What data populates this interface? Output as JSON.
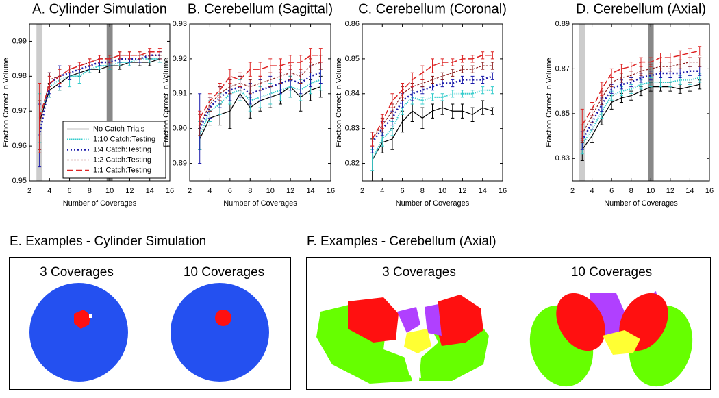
{
  "chart_data": [
    {
      "type": "line",
      "title": "A. Cylinder Simulation",
      "xlabel": "Number of Coverages",
      "ylabel": "Fraction Correct in Volume",
      "x": [
        3,
        4,
        5,
        6,
        7,
        8,
        9,
        10,
        11,
        12,
        13,
        14,
        15
      ],
      "xlim": [
        2,
        16
      ],
      "xticks": [
        2,
        4,
        6,
        8,
        10,
        12,
        14,
        16
      ],
      "ylim": [
        0.95,
        0.995
      ],
      "yticks": [
        0.95,
        0.96,
        0.97,
        0.98,
        0.99
      ],
      "legend": "lower right",
      "shaded": [
        {
          "x": [
            2.7,
            3.3
          ],
          "color": "#cccccc"
        },
        {
          "x": [
            9.7,
            10.3
          ],
          "color": "#888888"
        }
      ],
      "series": [
        {
          "name": "No Catch Trials",
          "color": "#000000",
          "style": "solid",
          "values": [
            0.967,
            0.976,
            0.978,
            0.98,
            0.981,
            0.982,
            0.982,
            0.983,
            0.983,
            0.984,
            0.984,
            0.984,
            0.985
          ],
          "errors": [
            0.006,
            0.002,
            0.002,
            0.001,
            0.001,
            0.001,
            0.001,
            0.001,
            0.001,
            0.001,
            0.001,
            0.001,
            0.001
          ]
        },
        {
          "name": "1:10 Catch:Testing",
          "color": "#33cccc",
          "style": "dotted",
          "values": [
            0.968,
            0.977,
            0.979,
            0.98,
            0.98,
            0.982,
            0.983,
            0.983,
            0.984,
            0.984,
            0.985,
            0.985,
            0.985
          ],
          "errors": [
            0.007,
            0.003,
            0.003,
            0.003,
            0.002,
            0.001,
            0.001,
            0.001,
            0.001,
            0.001,
            0.001,
            0.001,
            0.001
          ]
        },
        {
          "name": "1:4 Catch:Testing",
          "color": "#1a1aaa",
          "style": "heavydot",
          "values": [
            0.963,
            0.978,
            0.98,
            0.981,
            0.982,
            0.983,
            0.984,
            0.984,
            0.985,
            0.985,
            0.985,
            0.986,
            0.986
          ],
          "errors": [
            0.009,
            0.003,
            0.003,
            0.002,
            0.001,
            0.001,
            0.001,
            0.001,
            0.001,
            0.001,
            0.001,
            0.001,
            0.001
          ]
        },
        {
          "name": "1:2 Catch:Testing",
          "color": "#8b1a1a",
          "style": "dashed",
          "values": [
            0.966,
            0.979,
            0.98,
            0.982,
            0.983,
            0.984,
            0.985,
            0.985,
            0.986,
            0.986,
            0.986,
            0.986,
            0.986
          ],
          "errors": [
            0.007,
            0.002,
            0.002,
            0.001,
            0.001,
            0.001,
            0.001,
            0.001,
            0.001,
            0.001,
            0.001,
            0.001,
            0.001
          ]
        },
        {
          "name": "1:1 Catch:Testing",
          "color": "#dd2222",
          "style": "longdash",
          "values": [
            0.968,
            0.978,
            0.98,
            0.982,
            0.983,
            0.984,
            0.985,
            0.985,
            0.986,
            0.986,
            0.986,
            0.987,
            0.987
          ],
          "errors": [
            0.01,
            0.002,
            0.002,
            0.001,
            0.001,
            0.001,
            0.001,
            0.001,
            0.001,
            0.001,
            0.001,
            0.001,
            0.001
          ]
        }
      ]
    },
    {
      "type": "line",
      "title": "B. Cerebellum (Sagittal)",
      "xlabel": "Number of Coverages",
      "ylabel": "Fraction Correct in Volume",
      "x": [
        3,
        4,
        5,
        6,
        7,
        8,
        9,
        10,
        11,
        12,
        13,
        14,
        15
      ],
      "xlim": [
        2,
        16
      ],
      "xticks": [
        2,
        4,
        6,
        8,
        10,
        12,
        14,
        16
      ],
      "ylim": [
        0.885,
        0.93
      ],
      "yticks": [
        0.89,
        {
          "value": 0.9,
          "label": "0.90"
        },
        0.91,
        0.92,
        0.93
      ],
      "series": [
        {
          "color": "#000000",
          "style": "solid",
          "values": [
            0.897,
            0.903,
            0.904,
            0.905,
            0.91,
            0.906,
            0.908,
            0.909,
            0.91,
            0.912,
            0.909,
            0.911,
            0.912
          ],
          "errors": [
            0.003,
            0.002,
            0.003,
            0.005,
            0.002,
            0.003,
            0.003,
            0.003,
            0.003,
            0.003,
            0.004,
            0.003,
            0.003
          ]
        },
        {
          "color": "#33cccc",
          "style": "dotted",
          "values": [
            0.898,
            0.905,
            0.907,
            0.91,
            0.911,
            0.908,
            0.909,
            0.91,
            0.911,
            0.912,
            0.911,
            0.913,
            0.914
          ],
          "errors": [
            0.004,
            0.003,
            0.003,
            0.003,
            0.003,
            0.003,
            0.003,
            0.003,
            0.003,
            0.003,
            0.003,
            0.003,
            0.003
          ]
        },
        {
          "color": "#1a1aaa",
          "style": "heavydot",
          "values": [
            0.9,
            0.906,
            0.909,
            0.911,
            0.912,
            0.91,
            0.911,
            0.912,
            0.913,
            0.914,
            0.913,
            0.915,
            0.916
          ],
          "errors": [
            0.01,
            0.003,
            0.003,
            0.003,
            0.003,
            0.003,
            0.003,
            0.003,
            0.003,
            0.003,
            0.003,
            0.003,
            0.003
          ]
        },
        {
          "color": "#8b1a1a",
          "style": "dashed",
          "values": [
            0.901,
            0.907,
            0.91,
            0.912,
            0.913,
            0.912,
            0.913,
            0.914,
            0.915,
            0.916,
            0.915,
            0.918,
            0.919
          ],
          "errors": [
            0.003,
            0.002,
            0.002,
            0.002,
            0.002,
            0.002,
            0.002,
            0.002,
            0.002,
            0.002,
            0.002,
            0.002,
            0.002
          ]
        },
        {
          "color": "#dd2222",
          "style": "longdash",
          "values": [
            0.903,
            0.908,
            0.911,
            0.915,
            0.914,
            0.917,
            0.917,
            0.918,
            0.918,
            0.919,
            0.919,
            0.921,
            0.921
          ],
          "errors": [
            0.002,
            0.002,
            0.002,
            0.002,
            0.002,
            0.002,
            0.002,
            0.002,
            0.002,
            0.002,
            0.002,
            0.002,
            0.002
          ]
        }
      ]
    },
    {
      "type": "line",
      "title": "C. Cerebellum (Coronal)",
      "xlabel": "Number of Coverages",
      "ylabel": "Fraction Correct in Volume",
      "x": [
        3,
        4,
        5,
        6,
        7,
        8,
        9,
        10,
        11,
        12,
        13,
        14,
        15
      ],
      "xlim": [
        2,
        16
      ],
      "xticks": [
        2,
        4,
        6,
        8,
        10,
        12,
        14,
        16
      ],
      "ylim": [
        0.815,
        0.86
      ],
      "yticks": [
        0.82,
        0.83,
        0.84,
        0.85,
        0.86
      ],
      "series": [
        {
          "color": "#000000",
          "style": "solid",
          "values": [
            0.821,
            0.826,
            0.827,
            0.832,
            0.835,
            0.833,
            0.835,
            0.836,
            0.835,
            0.835,
            0.834,
            0.836,
            0.835
          ],
          "errors": [
            0.006,
            0.003,
            0.003,
            0.003,
            0.003,
            0.003,
            0.002,
            0.002,
            0.002,
            0.002,
            0.002,
            0.002,
            0.001
          ]
        },
        {
          "color": "#33cccc",
          "style": "dotted",
          "values": [
            0.821,
            0.827,
            0.83,
            0.836,
            0.839,
            0.838,
            0.839,
            0.839,
            0.84,
            0.84,
            0.84,
            0.841,
            0.841
          ],
          "errors": [
            0.003,
            0.002,
            0.002,
            0.002,
            0.002,
            0.001,
            0.001,
            0.001,
            0.001,
            0.001,
            0.001,
            0.001,
            0.001
          ]
        },
        {
          "color": "#1a1aaa",
          "style": "heavydot",
          "values": [
            0.826,
            0.83,
            0.833,
            0.838,
            0.84,
            0.841,
            0.842,
            0.843,
            0.843,
            0.844,
            0.844,
            0.844,
            0.845
          ],
          "errors": [
            0.003,
            0.002,
            0.002,
            0.002,
            0.002,
            0.001,
            0.001,
            0.001,
            0.001,
            0.001,
            0.001,
            0.001,
            0.001
          ]
        },
        {
          "color": "#8b1a1a",
          "style": "dashed",
          "values": [
            0.827,
            0.831,
            0.835,
            0.84,
            0.842,
            0.843,
            0.844,
            0.845,
            0.846,
            0.847,
            0.847,
            0.848,
            0.848
          ],
          "errors": [
            0.002,
            0.002,
            0.002,
            0.002,
            0.001,
            0.001,
            0.001,
            0.001,
            0.001,
            0.001,
            0.001,
            0.001,
            0.001
          ]
        },
        {
          "color": "#dd2222",
          "style": "longdash",
          "values": [
            0.827,
            0.832,
            0.838,
            0.841,
            0.844,
            0.846,
            0.848,
            0.849,
            0.849,
            0.85,
            0.85,
            0.851,
            0.851
          ],
          "errors": [
            0.002,
            0.002,
            0.002,
            0.002,
            0.002,
            0.002,
            0.002,
            0.001,
            0.001,
            0.001,
            0.001,
            0.001,
            0.001
          ]
        }
      ]
    },
    {
      "type": "line",
      "title": "D. Cerebellum (Axial)",
      "xlabel": "Number of Coverages",
      "ylabel": "Fraction Correct in Volume",
      "x": [
        3,
        4,
        5,
        6,
        7,
        8,
        9,
        10,
        11,
        12,
        13,
        14,
        15
      ],
      "xlim": [
        2,
        16
      ],
      "xticks": [
        2,
        4,
        6,
        8,
        10,
        12,
        14,
        16
      ],
      "ylim": [
        0.82,
        0.89
      ],
      "yticks": [
        0.83,
        0.85,
        0.87,
        0.89
      ],
      "shaded": [
        {
          "x": [
            2.7,
            3.3
          ],
          "color": "#cccccc"
        },
        {
          "x": [
            9.7,
            10.3
          ],
          "color": "#888888"
        }
      ],
      "series": [
        {
          "color": "#000000",
          "style": "solid",
          "values": [
            0.834,
            0.84,
            0.848,
            0.855,
            0.857,
            0.858,
            0.86,
            0.862,
            0.862,
            0.862,
            0.861,
            0.862,
            0.863
          ],
          "errors": [
            0.005,
            0.003,
            0.003,
            0.003,
            0.002,
            0.002,
            0.002,
            0.002,
            0.002,
            0.002,
            0.002,
            0.002,
            0.002
          ]
        },
        {
          "color": "#33cccc",
          "style": "dotted",
          "values": [
            0.836,
            0.843,
            0.851,
            0.858,
            0.86,
            0.861,
            0.863,
            0.864,
            0.864,
            0.864,
            0.865,
            0.865,
            0.866
          ],
          "errors": [
            0.004,
            0.003,
            0.003,
            0.002,
            0.002,
            0.002,
            0.002,
            0.002,
            0.002,
            0.002,
            0.002,
            0.002,
            0.002
          ]
        },
        {
          "color": "#1a1aaa",
          "style": "heavydot",
          "values": [
            0.838,
            0.846,
            0.854,
            0.861,
            0.863,
            0.864,
            0.866,
            0.867,
            0.868,
            0.868,
            0.868,
            0.869,
            0.869
          ],
          "errors": [
            0.004,
            0.003,
            0.003,
            0.002,
            0.002,
            0.002,
            0.002,
            0.002,
            0.002,
            0.002,
            0.002,
            0.002,
            0.002
          ]
        },
        {
          "color": "#8b1a1a",
          "style": "dashed",
          "values": [
            0.841,
            0.849,
            0.857,
            0.864,
            0.866,
            0.867,
            0.869,
            0.87,
            0.871,
            0.871,
            0.872,
            0.873,
            0.873
          ],
          "errors": [
            0.004,
            0.003,
            0.003,
            0.002,
            0.002,
            0.002,
            0.002,
            0.002,
            0.002,
            0.002,
            0.002,
            0.002,
            0.002
          ]
        },
        {
          "color": "#dd2222",
          "style": "longdash",
          "values": [
            0.845,
            0.852,
            0.861,
            0.868,
            0.87,
            0.871,
            0.873,
            0.873,
            0.875,
            0.875,
            0.876,
            0.877,
            0.878
          ],
          "errors": [
            0.007,
            0.003,
            0.003,
            0.002,
            0.002,
            0.002,
            0.002,
            0.002,
            0.002,
            0.002,
            0.002,
            0.002,
            0.002
          ]
        }
      ]
    }
  ],
  "panels": [
    {
      "title": "E. Examples - Cylinder Simulation",
      "examples": [
        {
          "label": "3 Coverages"
        },
        {
          "label": "10 Coverages"
        }
      ]
    },
    {
      "title": "F. Examples - Cerebellum (Axial)",
      "examples": [
        {
          "label": "3 Coverages"
        },
        {
          "label": "10 Coverages"
        }
      ]
    }
  ]
}
